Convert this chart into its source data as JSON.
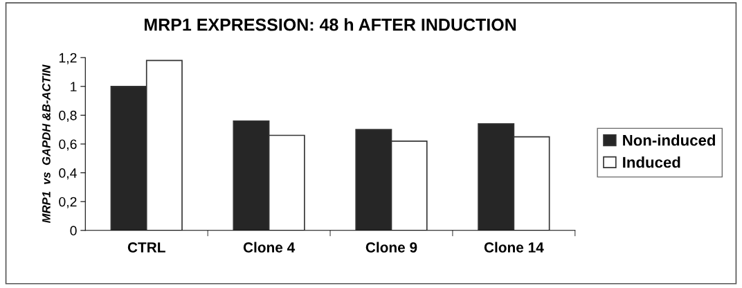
{
  "chart_data": {
    "type": "bar",
    "title": "MRP1 EXPRESSION: 48 h AFTER INDUCTION",
    "ylabel": "MRP1  vs  GAPDH &B-ACTIN",
    "categories": [
      "CTRL",
      "Clone 4",
      "Clone 9",
      "Clone 14"
    ],
    "series": [
      {
        "name": "Non-induced",
        "color": "#262626",
        "values": [
          1.0,
          0.76,
          0.7,
          0.74
        ]
      },
      {
        "name": "Induced",
        "color": "#ffffff",
        "values": [
          1.18,
          0.66,
          0.62,
          0.65
        ]
      }
    ],
    "ylim": [
      0,
      1.2
    ],
    "yticks": [
      0,
      {
        "value": 0.2,
        "label": "0,2"
      },
      {
        "value": 0.4,
        "label": "0,4"
      },
      {
        "value": 0.6,
        "label": "0,6"
      },
      {
        "value": 0.8,
        "label": "0,8"
      },
      1,
      {
        "value": 1.2,
        "label": "1,2"
      }
    ],
    "grid": false,
    "legend": "right"
  }
}
